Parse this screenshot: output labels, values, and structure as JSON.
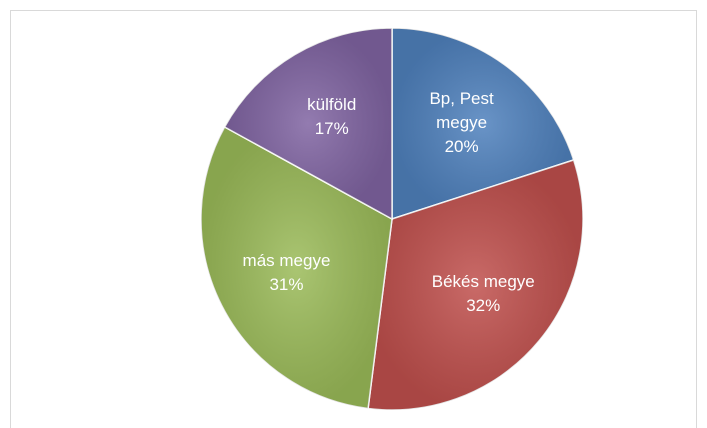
{
  "chart_data": {
    "type": "pie",
    "categories": [
      "Bp, Pest megye",
      "Békés megye",
      "más megye",
      "külföld"
    ],
    "values": [
      20,
      32,
      31,
      17
    ],
    "value_labels": [
      "20%",
      "32%",
      "31%",
      "17%"
    ],
    "colors": [
      "#4f81bd",
      "#c0504d",
      "#9bbb59",
      "#8064a2"
    ]
  }
}
